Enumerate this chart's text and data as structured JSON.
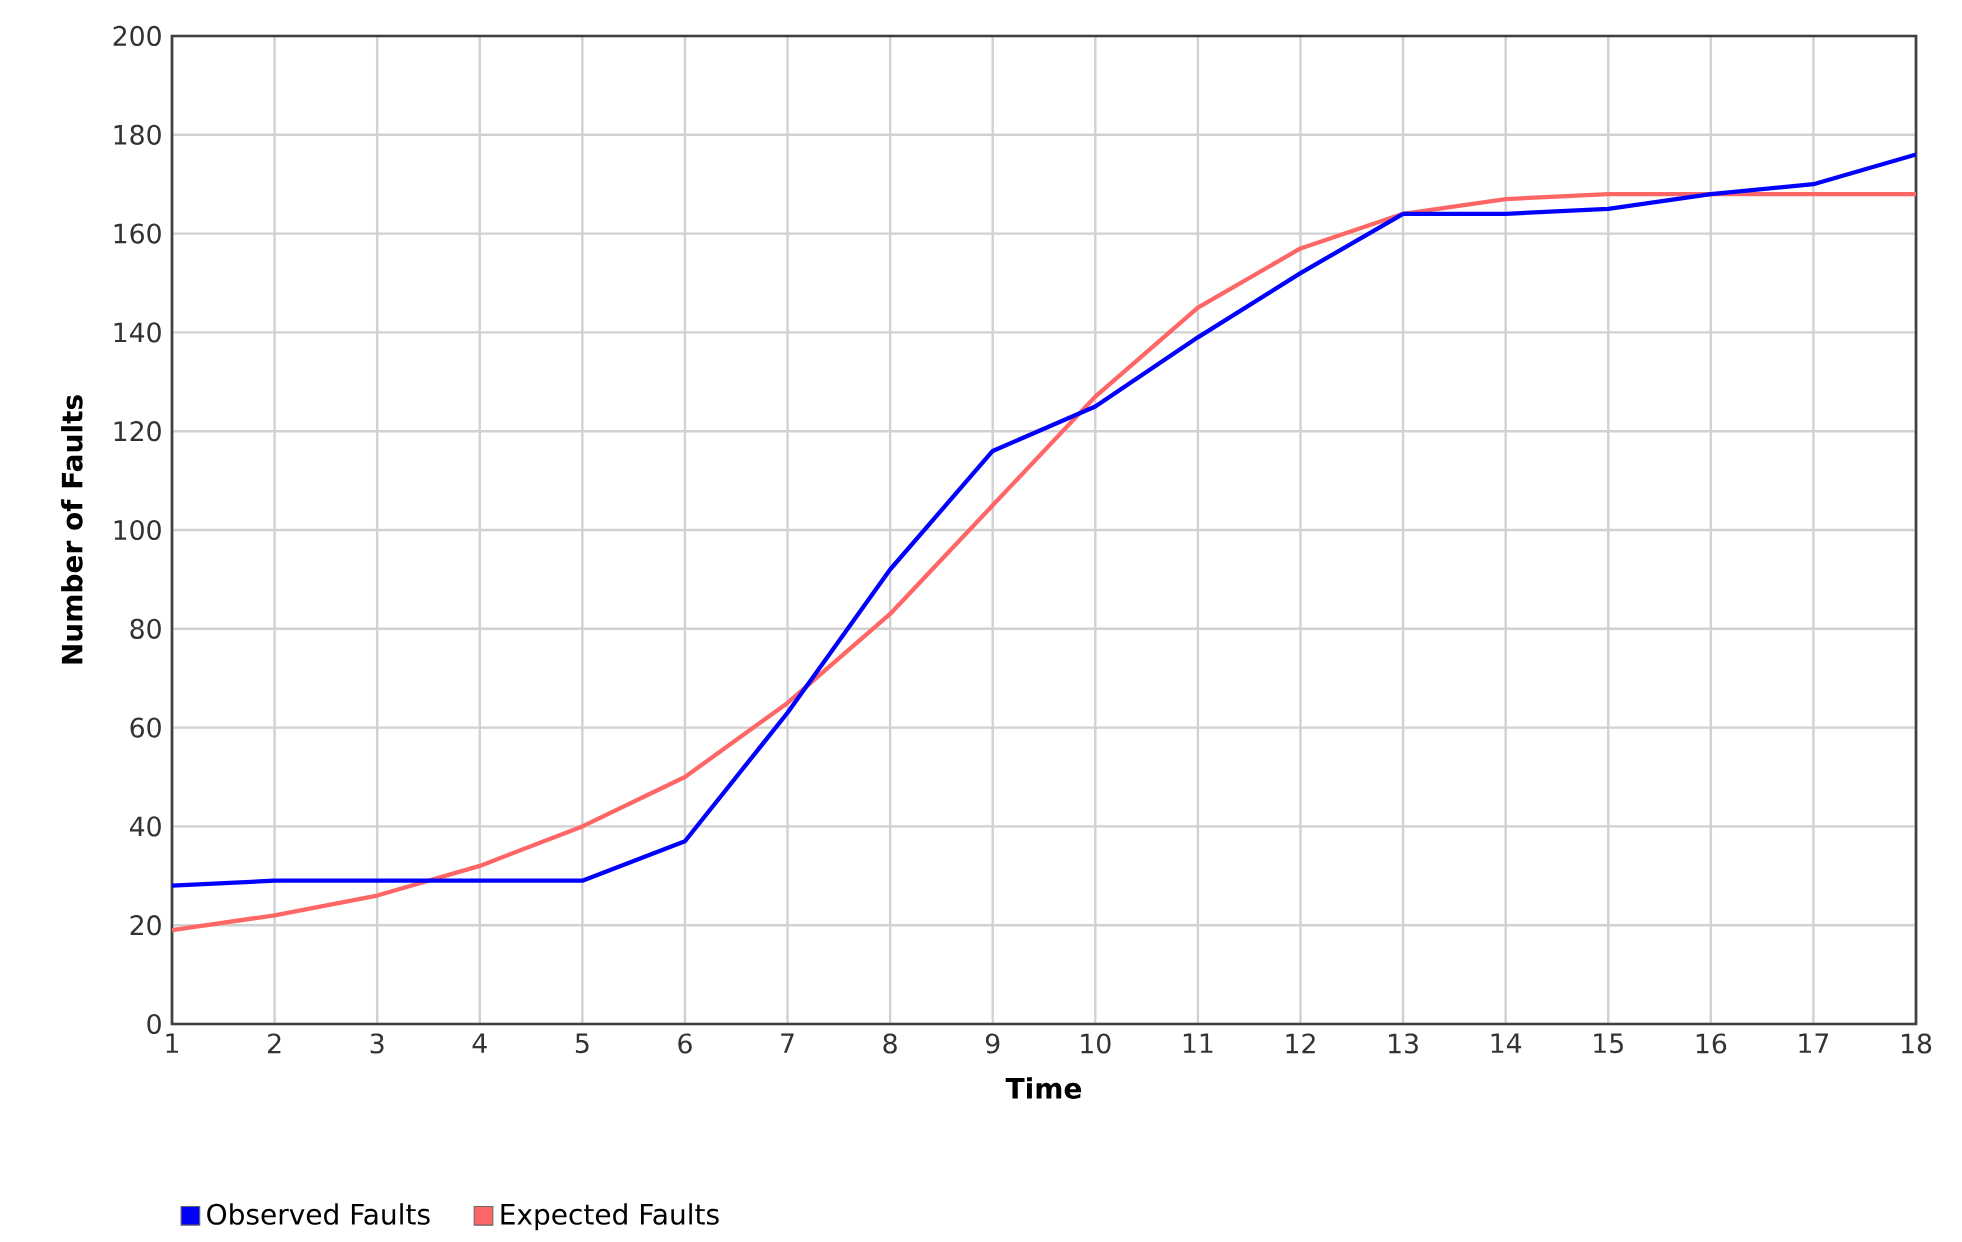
{
  "chart_data": {
    "type": "line",
    "xlabel": "Time",
    "ylabel": "Number of Faults",
    "x": [
      1,
      2,
      3,
      4,
      5,
      6,
      7,
      8,
      9,
      10,
      11,
      12,
      13,
      14,
      15,
      16,
      17,
      18
    ],
    "series": [
      {
        "name": "Observed Faults",
        "color": "#0000ff",
        "values": [
          28,
          29,
          29,
          29,
          29,
          37,
          63,
          92,
          116,
          125,
          139,
          152,
          164,
          164,
          165,
          168,
          170,
          176
        ]
      },
      {
        "name": "Expected Faults",
        "color": "#ff6666",
        "values": [
          19,
          22,
          26,
          32,
          40,
          50,
          65,
          83,
          105,
          127,
          145,
          157,
          164,
          167,
          168,
          168,
          168,
          168
        ]
      }
    ],
    "xlim": [
      1,
      18
    ],
    "xticks": [
      1,
      2,
      3,
      4,
      5,
      6,
      7,
      8,
      9,
      10,
      11,
      12,
      13,
      14,
      15,
      16,
      17,
      18
    ],
    "ylim": [
      0,
      200
    ],
    "yticks": [
      0,
      20,
      40,
      60,
      80,
      100,
      120,
      140,
      160,
      180,
      200
    ],
    "grid": true,
    "legend": "bottom",
    "marker": "none",
    "line_style": "solid"
  }
}
